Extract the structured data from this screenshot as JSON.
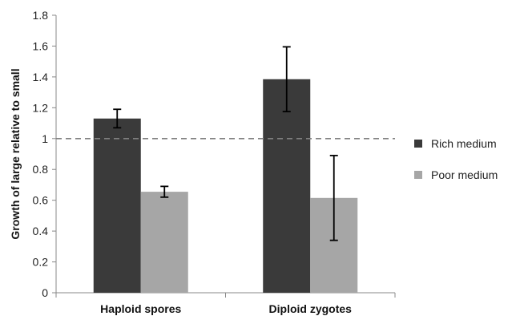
{
  "chart_data": {
    "type": "bar",
    "title": "",
    "xlabel": "",
    "ylabel": "Growth of large relative to small",
    "ylim": [
      0,
      1.8
    ],
    "yticks": [
      "0",
      "0.2",
      "0.4",
      "0.6",
      "0.8",
      "1",
      "1.2",
      "1.4",
      "1.6",
      "1.8"
    ],
    "categories": [
      "Haploid spores",
      "Diploid zygotes"
    ],
    "series": [
      {
        "name": "Rich medium",
        "color": "#3a3a3a",
        "values": [
          1.13,
          1.385
        ],
        "error": [
          0.06,
          0.21
        ]
      },
      {
        "name": "Poor medium",
        "color": "#a6a6a6",
        "values": [
          0.655,
          0.615
        ],
        "error": [
          0.035,
          0.275
        ]
      }
    ],
    "reference_line": {
      "y": 1.0,
      "style": "dashed",
      "color": "#808080"
    },
    "grid": false,
    "legend_position": "right"
  }
}
